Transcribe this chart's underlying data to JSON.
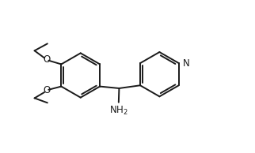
{
  "background_color": "#ffffff",
  "line_color": "#1a1a1a",
  "line_width": 1.4,
  "font_size_N": 9,
  "font_size_NH2": 9,
  "N_color": "#1a1a1a",
  "O_color": "#1a1a1a",
  "NH2_color": "#1a1a1a",
  "xlim": [
    0,
    10
  ],
  "ylim": [
    0,
    6.5
  ]
}
